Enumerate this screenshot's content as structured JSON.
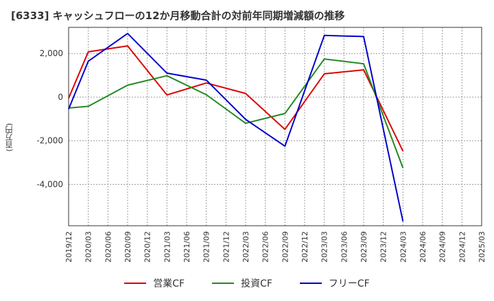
{
  "chart_data": {
    "type": "line",
    "title": "[6333]  キャッシュフローの12か月移動合計の対前年同期増減額の推移",
    "xlabel": "",
    "ylabel": "(百万円)",
    "ylim": [
      -5900,
      3200
    ],
    "yticks": [
      2000,
      0,
      -2000,
      -4000
    ],
    "ytick_labels": [
      "2,000",
      "0",
      "-2,000",
      "-4,000"
    ],
    "categories": [
      "2019/12",
      "2020/03",
      "2020/06",
      "2020/09",
      "2020/12",
      "2021/03",
      "2021/06",
      "2021/09",
      "2021/12",
      "2022/03",
      "2022/06",
      "2022/09",
      "2022/12",
      "2023/03",
      "2023/06",
      "2023/09",
      "2023/12",
      "2024/03",
      "2024/06",
      "2024/09",
      "2024/12",
      "2025/03"
    ],
    "series": [
      {
        "name": "営業CF",
        "color": "#dd0000",
        "values": [
          -50,
          2080,
          null,
          2350,
          null,
          100,
          null,
          650,
          null,
          170,
          null,
          -1480,
          null,
          1070,
          null,
          1250,
          null,
          -2480,
          null,
          null,
          null,
          null
        ]
      },
      {
        "name": "投資CF",
        "color": "#228822",
        "values": [
          -500,
          -420,
          null,
          550,
          null,
          980,
          null,
          110,
          null,
          -1200,
          null,
          -750,
          null,
          1750,
          null,
          1530,
          null,
          -3250,
          null,
          null,
          null,
          null
        ]
      },
      {
        "name": "フリーCF",
        "color": "#0000cc",
        "values": [
          -550,
          1650,
          null,
          2920,
          null,
          1100,
          null,
          780,
          null,
          -1020,
          null,
          -2250,
          null,
          2830,
          null,
          2780,
          null,
          -5700,
          null,
          null,
          null,
          null
        ]
      }
    ],
    "grid": true,
    "legend_position": "bottom"
  }
}
